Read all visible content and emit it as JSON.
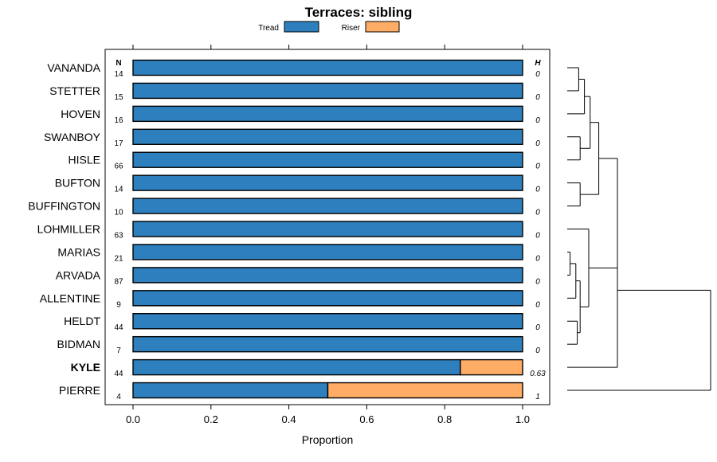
{
  "chart_data": {
    "type": "bar",
    "orientation": "horizontal",
    "stacked": true,
    "title": "Terraces: sibling",
    "xlabel": "Proportion",
    "xlim": [
      0,
      1
    ],
    "x_ticks": [
      "0.0",
      "0.2",
      "0.4",
      "0.6",
      "0.8",
      "1.0"
    ],
    "x_tick_values": [
      0,
      0.2,
      0.4,
      0.6,
      0.8,
      1.0
    ],
    "n_header": "N",
    "h_header": "H",
    "legend_position": "top",
    "categories": [
      "VANANDA",
      "STETTER",
      "HOVEN",
      "SWANBOY",
      "HISLE",
      "BUFTON",
      "BUFFINGTON",
      "LOHMILLER",
      "MARIAS",
      "ARVADA",
      "ALLENTINE",
      "HELDT",
      "BIDMAN",
      "KYLE",
      "PIERRE"
    ],
    "highlighted": "KYLE",
    "n": [
      "14",
      "15",
      "16",
      "17",
      "66",
      "14",
      "10",
      "63",
      "21",
      "87",
      "9",
      "44",
      "7",
      "44",
      "4"
    ],
    "h": [
      "0",
      "0",
      "0",
      "0",
      "0",
      "0",
      "0",
      "0",
      "0",
      "0",
      "0",
      "0",
      "0",
      "0.63",
      "1"
    ],
    "series": [
      {
        "name": "Tread",
        "color": "#2e7fbd",
        "values": [
          1,
          1,
          1,
          1,
          1,
          1,
          1,
          1,
          1,
          1,
          1,
          1,
          1,
          0.84,
          0.5
        ]
      },
      {
        "name": "Riser",
        "color": "#ffad66",
        "values": [
          0,
          0,
          0,
          0,
          0,
          0,
          0,
          0,
          0,
          0,
          0,
          0,
          0,
          0.16,
          0.5
        ]
      }
    ],
    "dendrogram": {
      "linkage_heights": {
        "VANANDA-STETTER": 0.08,
        "HOVEN-pair": 0.12,
        "SWANBOY-HISLE": 0.09,
        "BUFTON-BUFFINGTON": 0.09,
        "upper-group": 0.22,
        "MARIAS-ARVADA": 0.02,
        "ALLENTINE-sub": 0.06,
        "HELDT-BIDMAN": 0.07,
        "lower-sub": 0.09,
        "LOHMILLER-join": 0.15,
        "main-cluster": 0.35,
        "KYLE-join": 0.35,
        "PIERRE-join": 1.0
      }
    }
  }
}
